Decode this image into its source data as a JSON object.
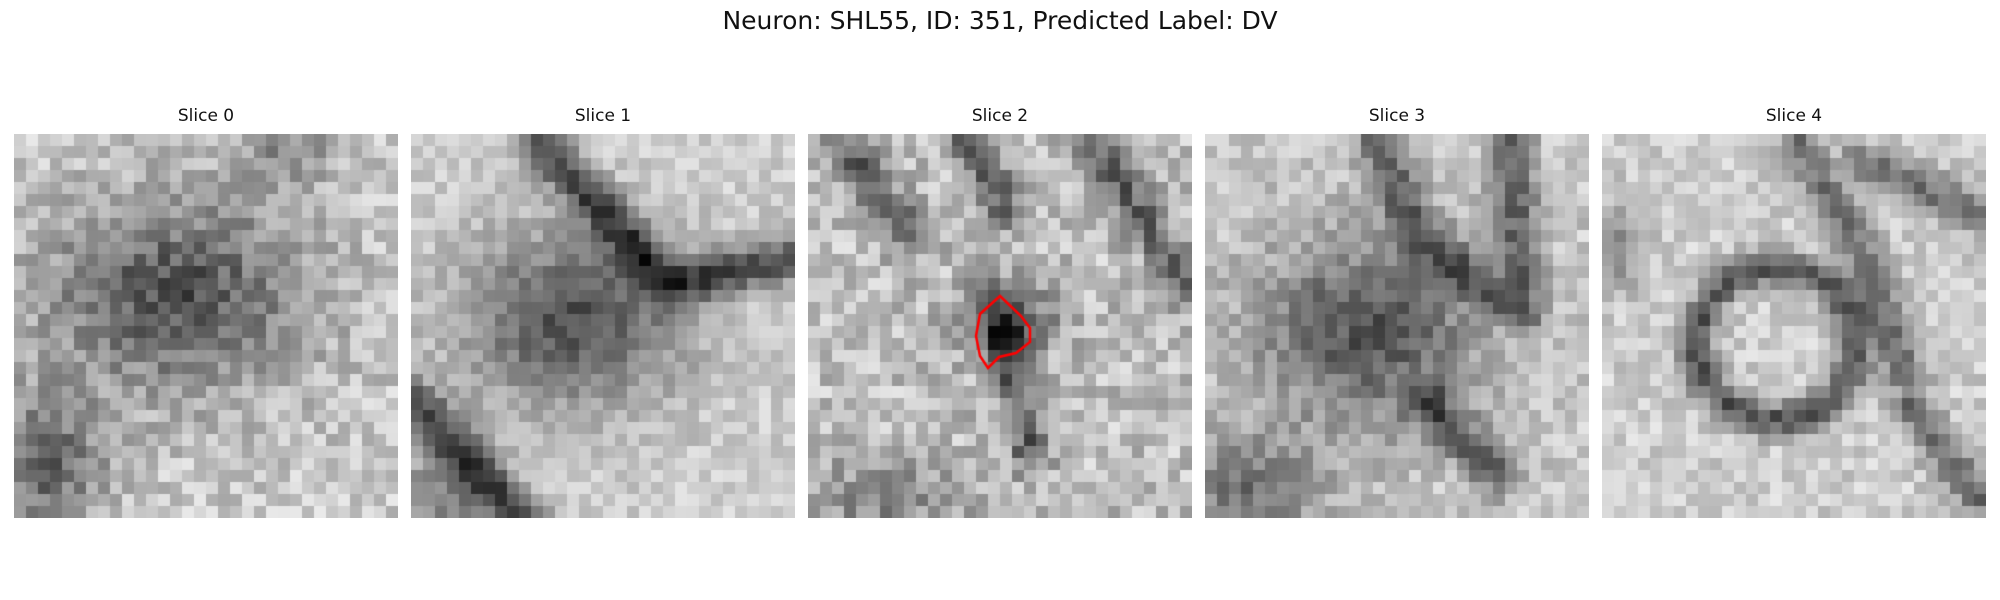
{
  "figure": {
    "title": "Neuron: SHL55, ID: 351, Predicted Label: DV"
  },
  "panels": [
    {
      "title": "Slice 0",
      "pattern": "diffuse-dark-blob"
    },
    {
      "title": "Slice 1",
      "pattern": "dark-cell-with-membranes"
    },
    {
      "title": "Slice 2",
      "pattern": "textured-with-contour"
    },
    {
      "title": "Slice 3",
      "pattern": "dark-cell-with-membranes"
    },
    {
      "title": "Slice 4",
      "pattern": "ring-cell"
    }
  ],
  "contour": {
    "panel_index": 2,
    "color": "#ff0000"
  },
  "colors": {
    "colormap": "grayscale",
    "background": "#ffffff"
  }
}
